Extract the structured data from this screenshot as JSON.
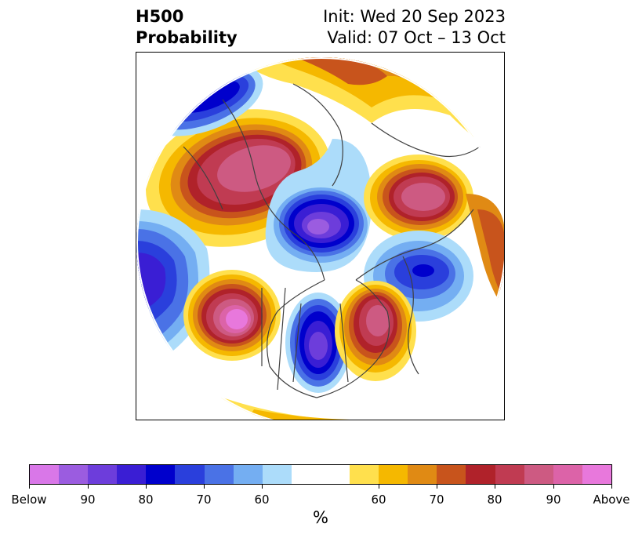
{
  "header": {
    "title_line1": "H500",
    "title_line2": "Probability",
    "init_text": "Init: Wed 20 Sep 2023",
    "valid_text": "Valid: 07 Oct – 13 Oct"
  },
  "colorbar": {
    "units": "%",
    "labels": [
      "Below",
      "90",
      "80",
      "70",
      "60",
      "60",
      "70",
      "80",
      "90",
      "Above"
    ],
    "colors": [
      "#d977e8",
      "#9b5ce0",
      "#6d3ddb",
      "#3a1ed4",
      "#0000cc",
      "#2a3fdc",
      "#4a72e6",
      "#74aef2",
      "#acdcfa",
      "#ffffff",
      "#ffe04d",
      "#f5b800",
      "#e08a14",
      "#c8541c",
      "#b0222a",
      "#c03b52",
      "#cd5a82",
      "#dc63a8",
      "#e878dc"
    ]
  },
  "map": {
    "projection": "north polar stereographic",
    "colors": {
      "above_light": "#ffe04d",
      "above_mid": "#f5b800",
      "above_orange": "#e08a14",
      "above_dark": "#c8541c",
      "above_red": "#b0222a",
      "above_crimson": "#c03b52",
      "above_pink": "#cd5a82",
      "above_magenta": "#dc63a8",
      "above_max": "#e878dc",
      "below_light": "#acdcfa",
      "below_lightblue": "#74aef2",
      "below_blue": "#4a72e6",
      "below_royal": "#2a3fdc",
      "below_deep": "#0000cc",
      "below_indigo": "#3a1ed4",
      "below_purple": "#6d3ddb",
      "below_max": "#9b5ce0",
      "coastline": "#404040"
    }
  }
}
